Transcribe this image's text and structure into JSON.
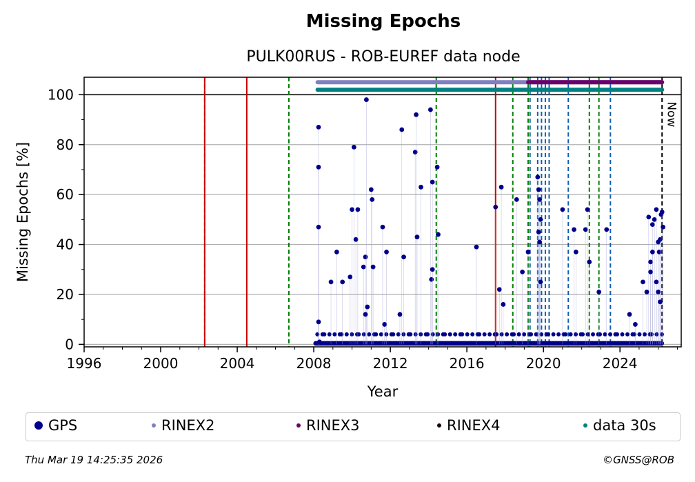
{
  "header": {
    "title": "Missing Epochs",
    "subtitle": "PULK00RUS - ROB-EUREF data node"
  },
  "footer": {
    "timestamp": "Thu Mar 19 14:25:35 2026",
    "copyright": "©GNSS@ROB"
  },
  "legend": [
    {
      "label": "GPS",
      "color": "#00008b",
      "size": "large"
    },
    {
      "label": "RINEX2",
      "color": "#8080c0",
      "size": "small"
    },
    {
      "label": "RINEX3",
      "color": "#6a006a",
      "size": "small"
    },
    {
      "label": "RINEX4",
      "color": "#1a0010",
      "size": "small"
    },
    {
      "label": "data 30s",
      "color": "#008080",
      "size": "small"
    }
  ],
  "chart_data": {
    "type": "scatter",
    "title": "Missing Epochs",
    "subtitle": "PULK00RUS - ROB-EUREF data node",
    "xlabel": "Year",
    "ylabel": "Missing Epochs [%]",
    "xlim": [
      1996,
      2027.2
    ],
    "ylim": [
      -1,
      107
    ],
    "x_ticks": [
      1996,
      2000,
      2004,
      2008,
      2012,
      2016,
      2020,
      2024
    ],
    "y_ticks": [
      0,
      20,
      40,
      60,
      80,
      100
    ],
    "grid": "horizontal",
    "now_label": "Now",
    "now_x": 2026.2,
    "reference_line_y": 100,
    "vertical_lines": {
      "red_solid": [
        2002.3,
        2004.5,
        2017.5
      ],
      "green_dashed": [
        2002.3,
        2006.7,
        2014.4,
        2018.4,
        2019.2,
        2022.4,
        2022.9
      ],
      "blue_dashed": [
        2019.3,
        2019.7,
        2019.9,
        2020.1,
        2020.3,
        2021.3,
        2023.5
      ],
      "black_dashed": [
        2026.2
      ]
    },
    "availability_bars": [
      {
        "name": "RINEX2",
        "start": 2008.2,
        "end": 2019.2,
        "y": 105,
        "color": "#8080c0"
      },
      {
        "name": "RINEX2",
        "start": 2019.2,
        "end": 2026.2,
        "y": 105,
        "color": "#8080c0"
      },
      {
        "name": "RINEX3",
        "start": 2019.2,
        "end": 2026.2,
        "y": 105,
        "color": "#6a006a"
      },
      {
        "name": "data 30s",
        "start": 2008.2,
        "end": 2026.2,
        "y": 102,
        "color": "#008080"
      }
    ],
    "series": [
      {
        "name": "GPS",
        "color": "#00008b",
        "x": [
          2008.25,
          2008.25,
          2008.25,
          2008.25,
          2008.3,
          2008.9,
          2009.2,
          2009.5,
          2009.9,
          2010.0,
          2010.1,
          2010.2,
          2010.3,
          2010.6,
          2010.7,
          2010.75,
          2010.8,
          2011.0,
          2011.05,
          2011.1,
          2011.6,
          2011.7,
          2011.8,
          2012.6,
          2012.7,
          2013.3,
          2013.35,
          2013.6,
          2014.1,
          2014.15,
          2014.2,
          2014.45,
          2014.5,
          2016.5,
          2017.5,
          2017.7,
          2017.8,
          2017.9,
          2018.6,
          2018.9,
          2019.2,
          2019.7,
          2019.75,
          2019.8,
          2019.85,
          2021.0,
          2021.6,
          2021.7,
          2022.2,
          2022.3,
          2022.4,
          2023.3,
          2025.5,
          2025.6,
          2025.7,
          2025.8,
          2025.9,
          2026.0,
          2026.05,
          2026.1,
          2026.15,
          2026.2,
          2026.25,
          2010.7,
          2012.5,
          2013.4,
          2014.2,
          2019.75,
          2019.8,
          2019.85,
          2022.9,
          2024.5,
          2024.8,
          2025.2,
          2025.4,
          2025.6,
          2025.7,
          2025.9,
          2026.0,
          2026.1
        ],
        "y": [
          87,
          71,
          47,
          9,
          1,
          25,
          37,
          25,
          27,
          54,
          79,
          42,
          54,
          31,
          35,
          98,
          15,
          62,
          58,
          31,
          47,
          8,
          37,
          86,
          35,
          77,
          92,
          63,
          94,
          26,
          65,
          71,
          44,
          39,
          55,
          22,
          63,
          16,
          58,
          29,
          37,
          67,
          62,
          58,
          50,
          54,
          46,
          37,
          46,
          54,
          33,
          46,
          51,
          33,
          48,
          50,
          54,
          41,
          37,
          42,
          52,
          53,
          47,
          12,
          12,
          43,
          30,
          45,
          41,
          25,
          21,
          12,
          8,
          25,
          21,
          29,
          37,
          25,
          21,
          17
        ]
      }
    ]
  }
}
